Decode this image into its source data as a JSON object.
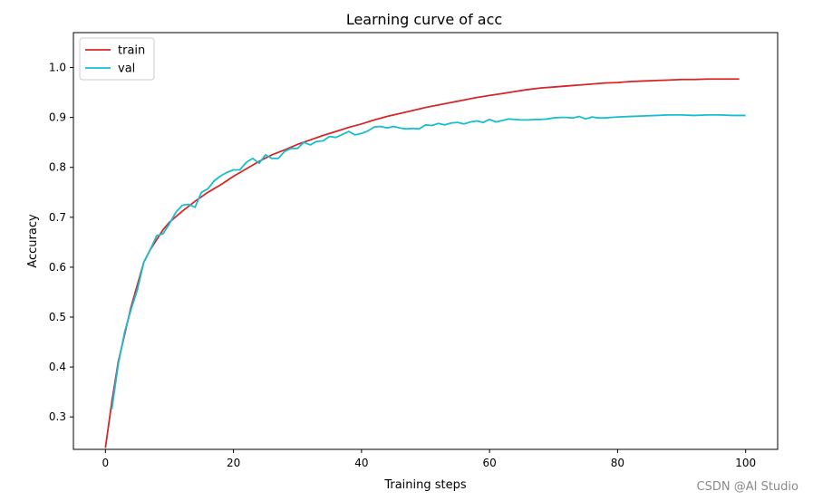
{
  "chart_data": {
    "type": "line",
    "title": "Learning curve of acc",
    "xlabel": "Training steps",
    "ylabel": "Accuracy",
    "xlim": [
      -5,
      105
    ],
    "ylim": [
      0.235,
      1.07
    ],
    "xticks": [
      0,
      20,
      40,
      60,
      80,
      100
    ],
    "yticks": [
      0.3,
      0.4,
      0.5,
      0.6,
      0.7,
      0.8,
      0.9,
      1.0
    ],
    "grid": false,
    "legend": "top-left",
    "series": [
      {
        "name": "train",
        "color": "#d62728",
        "x": [
          0,
          1,
          2,
          3,
          4,
          5,
          6,
          7,
          8,
          9,
          10,
          12,
          14,
          16,
          18,
          20,
          22,
          24,
          26,
          28,
          30,
          32,
          34,
          36,
          38,
          40,
          42,
          44,
          46,
          48,
          50,
          52,
          54,
          56,
          58,
          60,
          62,
          64,
          66,
          68,
          70,
          72,
          74,
          76,
          78,
          80,
          82,
          84,
          86,
          88,
          90,
          92,
          94,
          96,
          98,
          99
        ],
        "values": [
          0.238,
          0.33,
          0.41,
          0.465,
          0.52,
          0.565,
          0.61,
          0.635,
          0.655,
          0.675,
          0.69,
          0.712,
          0.732,
          0.75,
          0.765,
          0.782,
          0.797,
          0.812,
          0.825,
          0.835,
          0.846,
          0.855,
          0.864,
          0.872,
          0.88,
          0.887,
          0.895,
          0.902,
          0.908,
          0.914,
          0.92,
          0.925,
          0.93,
          0.935,
          0.94,
          0.944,
          0.948,
          0.952,
          0.956,
          0.959,
          0.961,
          0.963,
          0.965,
          0.967,
          0.969,
          0.97,
          0.972,
          0.973,
          0.974,
          0.975,
          0.976,
          0.976,
          0.977,
          0.977,
          0.977,
          0.977
        ]
      },
      {
        "name": "val",
        "color": "#17becf",
        "x": [
          1,
          2,
          3,
          4,
          5,
          6,
          7,
          8,
          9,
          10,
          11,
          12,
          13,
          14,
          15,
          16,
          17,
          18,
          19,
          20,
          21,
          22,
          23,
          24,
          25,
          26,
          27,
          28,
          29,
          30,
          31,
          32,
          33,
          34,
          35,
          36,
          37,
          38,
          39,
          40,
          41,
          42,
          43,
          44,
          45,
          46,
          47,
          48,
          49,
          50,
          51,
          52,
          53,
          54,
          55,
          56,
          57,
          58,
          59,
          60,
          61,
          62,
          63,
          64,
          65,
          66,
          67,
          68,
          69,
          70,
          71,
          72,
          73,
          74,
          75,
          76,
          77,
          78,
          79,
          80,
          82,
          84,
          86,
          88,
          90,
          92,
          94,
          96,
          98,
          100
        ],
        "values": [
          0.315,
          0.405,
          0.47,
          0.515,
          0.555,
          0.61,
          0.635,
          0.663,
          0.667,
          0.687,
          0.71,
          0.724,
          0.726,
          0.72,
          0.75,
          0.757,
          0.773,
          0.783,
          0.79,
          0.795,
          0.795,
          0.81,
          0.818,
          0.808,
          0.825,
          0.818,
          0.818,
          0.832,
          0.838,
          0.838,
          0.85,
          0.845,
          0.852,
          0.853,
          0.862,
          0.86,
          0.866,
          0.872,
          0.865,
          0.868,
          0.873,
          0.881,
          0.882,
          0.879,
          0.882,
          0.879,
          0.877,
          0.878,
          0.877,
          0.885,
          0.884,
          0.888,
          0.885,
          0.889,
          0.89,
          0.887,
          0.891,
          0.893,
          0.89,
          0.896,
          0.891,
          0.894,
          0.897,
          0.896,
          0.895,
          0.895,
          0.896,
          0.896,
          0.897,
          0.899,
          0.9,
          0.9,
          0.899,
          0.902,
          0.897,
          0.901,
          0.899,
          0.899,
          0.9,
          0.901,
          0.902,
          0.903,
          0.904,
          0.905,
          0.905,
          0.904,
          0.905,
          0.905,
          0.904,
          0.904
        ]
      }
    ]
  },
  "watermark": "CSDN @AI Studio"
}
